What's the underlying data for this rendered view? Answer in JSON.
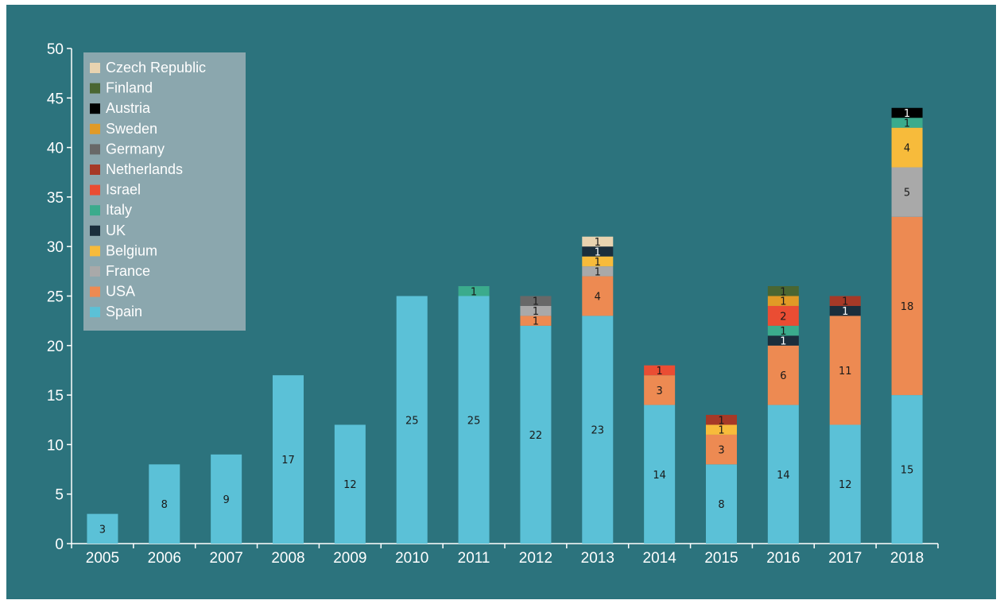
{
  "chart_data": {
    "type": "bar",
    "stacked": true,
    "categories": [
      "2005",
      "2006",
      "2007",
      "2008",
      "2009",
      "2010",
      "2011",
      "2012",
      "2013",
      "2014",
      "2015",
      "2016",
      "2017",
      "2018"
    ],
    "ylim": [
      0,
      50
    ],
    "yticks": [
      0,
      5,
      10,
      15,
      20,
      25,
      30,
      35,
      40,
      45,
      50
    ],
    "grid": false,
    "legend_position": "top-left",
    "series": [
      {
        "name": "Spain",
        "color": "#5bc1d7",
        "values": [
          3,
          8,
          9,
          17,
          12,
          25,
          25,
          22,
          23,
          14,
          8,
          14,
          12,
          15
        ]
      },
      {
        "name": "USA",
        "color": "#ed8a52",
        "values": [
          0,
          0,
          0,
          0,
          0,
          0,
          0,
          1,
          4,
          3,
          3,
          6,
          11,
          18
        ]
      },
      {
        "name": "France",
        "color": "#a9a9a9",
        "values": [
          0,
          0,
          0,
          0,
          0,
          0,
          0,
          1,
          1,
          0,
          0,
          0,
          0,
          5
        ]
      },
      {
        "name": "Belgium",
        "color": "#f7bb3b",
        "values": [
          0,
          0,
          0,
          0,
          0,
          0,
          0,
          0,
          1,
          0,
          1,
          0,
          0,
          4
        ]
      },
      {
        "name": "UK",
        "color": "#1b2e3c",
        "values": [
          0,
          0,
          0,
          0,
          0,
          0,
          0,
          0,
          1,
          0,
          0,
          1,
          1,
          0
        ]
      },
      {
        "name": "Italy",
        "color": "#3bab8c",
        "values": [
          0,
          0,
          0,
          0,
          0,
          0,
          1,
          0,
          0,
          0,
          0,
          1,
          0,
          1
        ]
      },
      {
        "name": "Israel",
        "color": "#ea4d33",
        "values": [
          0,
          0,
          0,
          0,
          0,
          0,
          0,
          0,
          0,
          1,
          0,
          2,
          0,
          0
        ]
      },
      {
        "name": "Netherlands",
        "color": "#a63927",
        "values": [
          0,
          0,
          0,
          0,
          0,
          0,
          0,
          0,
          0,
          0,
          1,
          0,
          1,
          0
        ]
      },
      {
        "name": "Germany",
        "color": "#686868",
        "values": [
          0,
          0,
          0,
          0,
          0,
          0,
          0,
          1,
          0,
          0,
          0,
          0,
          0,
          0
        ]
      },
      {
        "name": "Sweden",
        "color": "#e19a26",
        "values": [
          0,
          0,
          0,
          0,
          0,
          0,
          0,
          0,
          0,
          0,
          0,
          1,
          0,
          0
        ]
      },
      {
        "name": "Austria",
        "color": "#000000",
        "values": [
          0,
          0,
          0,
          0,
          0,
          0,
          0,
          0,
          0,
          0,
          0,
          0,
          0,
          1
        ]
      },
      {
        "name": "Finland",
        "color": "#4a6632",
        "values": [
          0,
          0,
          0,
          0,
          0,
          0,
          0,
          0,
          0,
          0,
          0,
          1,
          0,
          0
        ]
      },
      {
        "name": "Czech Republic",
        "color": "#e8d3b0",
        "values": [
          0,
          0,
          0,
          0,
          0,
          0,
          0,
          0,
          1,
          0,
          0,
          0,
          0,
          0
        ]
      }
    ],
    "legend_order": [
      "Czech Republic",
      "Finland",
      "Austria",
      "Sweden",
      "Germany",
      "Netherlands",
      "Israel",
      "Italy",
      "UK",
      "Belgium",
      "France",
      "USA",
      "Spain"
    ]
  },
  "colors": {
    "background": "#2c737d",
    "legend_box": "#8ba7ae",
    "axis": "#ffffff"
  }
}
